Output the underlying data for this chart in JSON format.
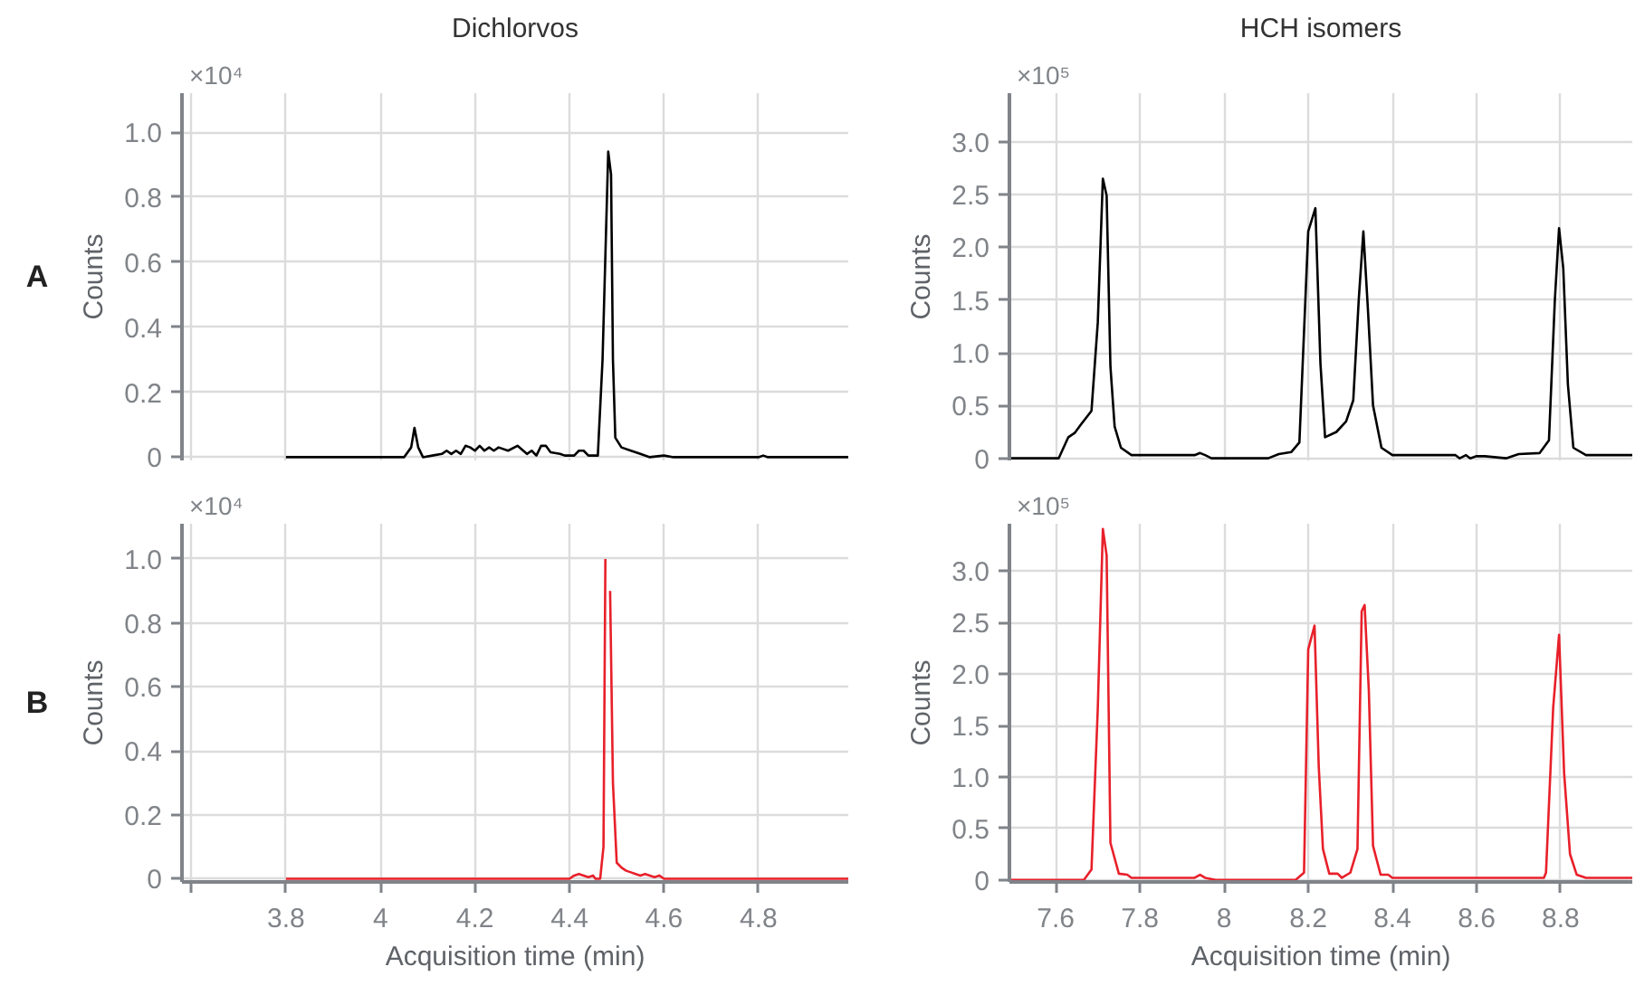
{
  "chart_data": [
    {
      "type": "line",
      "title": "Dichlorvos",
      "ylabel": "Counts",
      "annotations": [
        "×10⁴",
        "A"
      ],
      "xlim": [
        3.58,
        4.99
      ],
      "ylim": [
        -0.01,
        1.12
      ],
      "xticks": [
        {
          "value": 3.6,
          "label": null
        },
        3.8,
        4,
        4.2,
        4.4,
        4.6,
        4.8
      ],
      "yticks": [
        0,
        0.2,
        0.4,
        0.6,
        0.8,
        {
          "value": 1,
          "label": "1.0"
        }
      ],
      "grid": true,
      "tick_labels": "y",
      "series": [
        {
          "color": "#000000",
          "x": [
            3.8,
            4.05,
            4.065,
            4.072,
            4.08,
            4.09,
            4.11,
            4.13,
            4.14,
            4.15,
            4.16,
            4.17,
            4.18,
            4.19,
            4.2,
            4.21,
            4.22,
            4.23,
            4.24,
            4.25,
            4.27,
            4.29,
            4.31,
            4.32,
            4.33,
            4.34,
            4.35,
            4.36,
            4.38,
            4.39,
            4.41,
            4.42,
            4.43,
            4.44,
            4.46,
            4.47,
            4.482,
            4.488,
            4.492,
            4.497,
            4.51,
            4.53,
            4.55,
            4.57,
            4.6,
            4.62,
            4.8,
            4.81,
            4.82,
            4.99
          ],
          "values": [
            0,
            0,
            0.03,
            0.09,
            0.03,
            0,
            0.005,
            0.01,
            0.02,
            0.01,
            0.02,
            0.01,
            0.035,
            0.03,
            0.02,
            0.035,
            0.02,
            0.03,
            0.02,
            0.03,
            0.02,
            0.035,
            0.01,
            0.02,
            0.005,
            0.035,
            0.035,
            0.015,
            0.01,
            0.005,
            0.005,
            0.02,
            0.02,
            0.005,
            0.005,
            0.3,
            0.94,
            0.87,
            0.3,
            0.06,
            0.03,
            0.02,
            0.01,
            0,
            0.005,
            0,
            0,
            0.005,
            0,
            0
          ]
        }
      ]
    },
    {
      "type": "line",
      "title": "HCH isomers",
      "ylabel": "Counts",
      "annotations": [
        "×10⁵"
      ],
      "xlim": [
        7.49,
        8.97
      ],
      "ylim": [
        -0.02,
        3.46
      ],
      "xticks": [
        7.6,
        7.8,
        8,
        8.2,
        8.4,
        8.6,
        8.8
      ],
      "yticks": [
        0,
        0.5,
        {
          "value": 1,
          "label": "1.0"
        },
        1.5,
        {
          "value": 2,
          "label": "2.0"
        },
        2.5,
        {
          "value": 3,
          "label": "3.0"
        }
      ],
      "grid": true,
      "tick_labels": "y",
      "series": [
        {
          "color": "#000000",
          "x": [
            7.49,
            7.607,
            7.63,
            7.645,
            7.66,
            7.685,
            7.7,
            7.712,
            7.721,
            7.73,
            7.74,
            7.755,
            7.78,
            7.93,
            7.943,
            7.955,
            7.97,
            8.105,
            8.13,
            8.16,
            8.179,
            8.2,
            8.217,
            8.229,
            8.24,
            8.267,
            8.29,
            8.307,
            8.32,
            8.331,
            8.342,
            8.354,
            8.374,
            8.4,
            8.55,
            8.56,
            8.575,
            8.585,
            8.6,
            8.62,
            8.67,
            8.7,
            8.75,
            8.772,
            8.786,
            8.796,
            8.806,
            8.817,
            8.83,
            8.86,
            8.97
          ],
          "values": [
            0,
            0,
            0.2,
            0.24,
            0.32,
            0.45,
            1.29,
            2.65,
            2.49,
            0.87,
            0.3,
            0.1,
            0.03,
            0.03,
            0.05,
            0.03,
            0,
            0,
            0.04,
            0.06,
            0.15,
            2.15,
            2.37,
            0.9,
            0.2,
            0.25,
            0.35,
            0.55,
            1.5,
            2.15,
            1.4,
            0.5,
            0.1,
            0.03,
            0.03,
            0,
            0.03,
            0,
            0.02,
            0.02,
            0,
            0.04,
            0.05,
            0.17,
            1.5,
            2.18,
            1.8,
            0.7,
            0.1,
            0.03,
            0.03
          ]
        }
      ]
    },
    {
      "type": "line",
      "xlabel": "Acquisition time (min)",
      "ylabel": "Counts",
      "annotations": [
        "×10⁴",
        "B"
      ],
      "xlim": [
        3.58,
        4.99
      ],
      "ylim": [
        -0.01,
        1.11
      ],
      "xticks": [
        {
          "value": 3.6,
          "label": null
        },
        3.8,
        4,
        4.2,
        4.4,
        4.6,
        4.8
      ],
      "yticks": [
        0,
        0.2,
        0.4,
        0.6,
        0.8,
        {
          "value": 1,
          "label": "1.0"
        }
      ],
      "grid": true,
      "series": [
        {
          "color": "#e8202a",
          "x": [
            3.8,
            4.4,
            4.41,
            4.42,
            4.43,
            4.44,
            4.45,
            4.455,
            4.465,
            4.472,
            4.476,
            4.479,
            4.483,
            4.486,
            4.492,
            4.5,
            4.51,
            4.52,
            4.53,
            4.54,
            4.55,
            4.56,
            4.57,
            4.58,
            4.59,
            4.6,
            4.99
          ],
          "values": [
            0,
            0,
            0.01,
            0.015,
            0.01,
            0.005,
            0.01,
            0,
            0,
            0.1,
            1.0,
            null,
            null,
            0.9,
            0.3,
            0.05,
            0.035,
            0.025,
            0.02,
            0.015,
            0.01,
            0.015,
            0.01,
            0.005,
            0.01,
            0,
            0
          ]
        }
      ]
    },
    {
      "type": "line",
      "xlabel": "Acquisition time (min)",
      "ylabel": "Counts",
      "annotations": [
        "×10⁵"
      ],
      "xlim": [
        7.49,
        8.97
      ],
      "ylim": [
        -0.02,
        3.46
      ],
      "xticks": [
        7.6,
        7.8,
        8,
        8.2,
        8.4,
        8.6,
        8.8
      ],
      "yticks": [
        0,
        0.5,
        {
          "value": 1,
          "label": "1.0"
        },
        1.5,
        {
          "value": 2,
          "label": "2.0"
        },
        2.5,
        {
          "value": 3,
          "label": "3.0"
        }
      ],
      "grid": true,
      "series": [
        {
          "color": "#e8202a",
          "x": [
            7.49,
            7.667,
            7.685,
            7.7,
            7.712,
            7.721,
            7.73,
            7.75,
            7.77,
            7.78,
            7.93,
            7.943,
            7.955,
            7.98,
            8.17,
            8.19,
            8.2,
            8.215,
            8.225,
            8.235,
            8.25,
            8.27,
            8.28,
            8.3,
            8.317,
            8.327,
            8.334,
            8.344,
            8.354,
            8.372,
            8.39,
            8.4,
            8.76,
            8.765,
            8.782,
            8.796,
            8.808,
            8.822,
            8.838,
            8.86,
            8.97
          ],
          "values": [
            0,
            0,
            0.1,
            1.67,
            3.41,
            3.15,
            0.36,
            0.06,
            0.05,
            0.02,
            0.02,
            0.05,
            0.02,
            0,
            0,
            0.07,
            2.24,
            2.47,
            1.1,
            0.3,
            0.06,
            0.06,
            0.02,
            0.07,
            0.3,
            2.61,
            2.67,
            1.84,
            0.33,
            0.05,
            0.05,
            0.02,
            0.02,
            0.07,
            1.67,
            2.38,
            1.04,
            0.25,
            0.05,
            0.02,
            0.02
          ]
        }
      ]
    }
  ]
}
